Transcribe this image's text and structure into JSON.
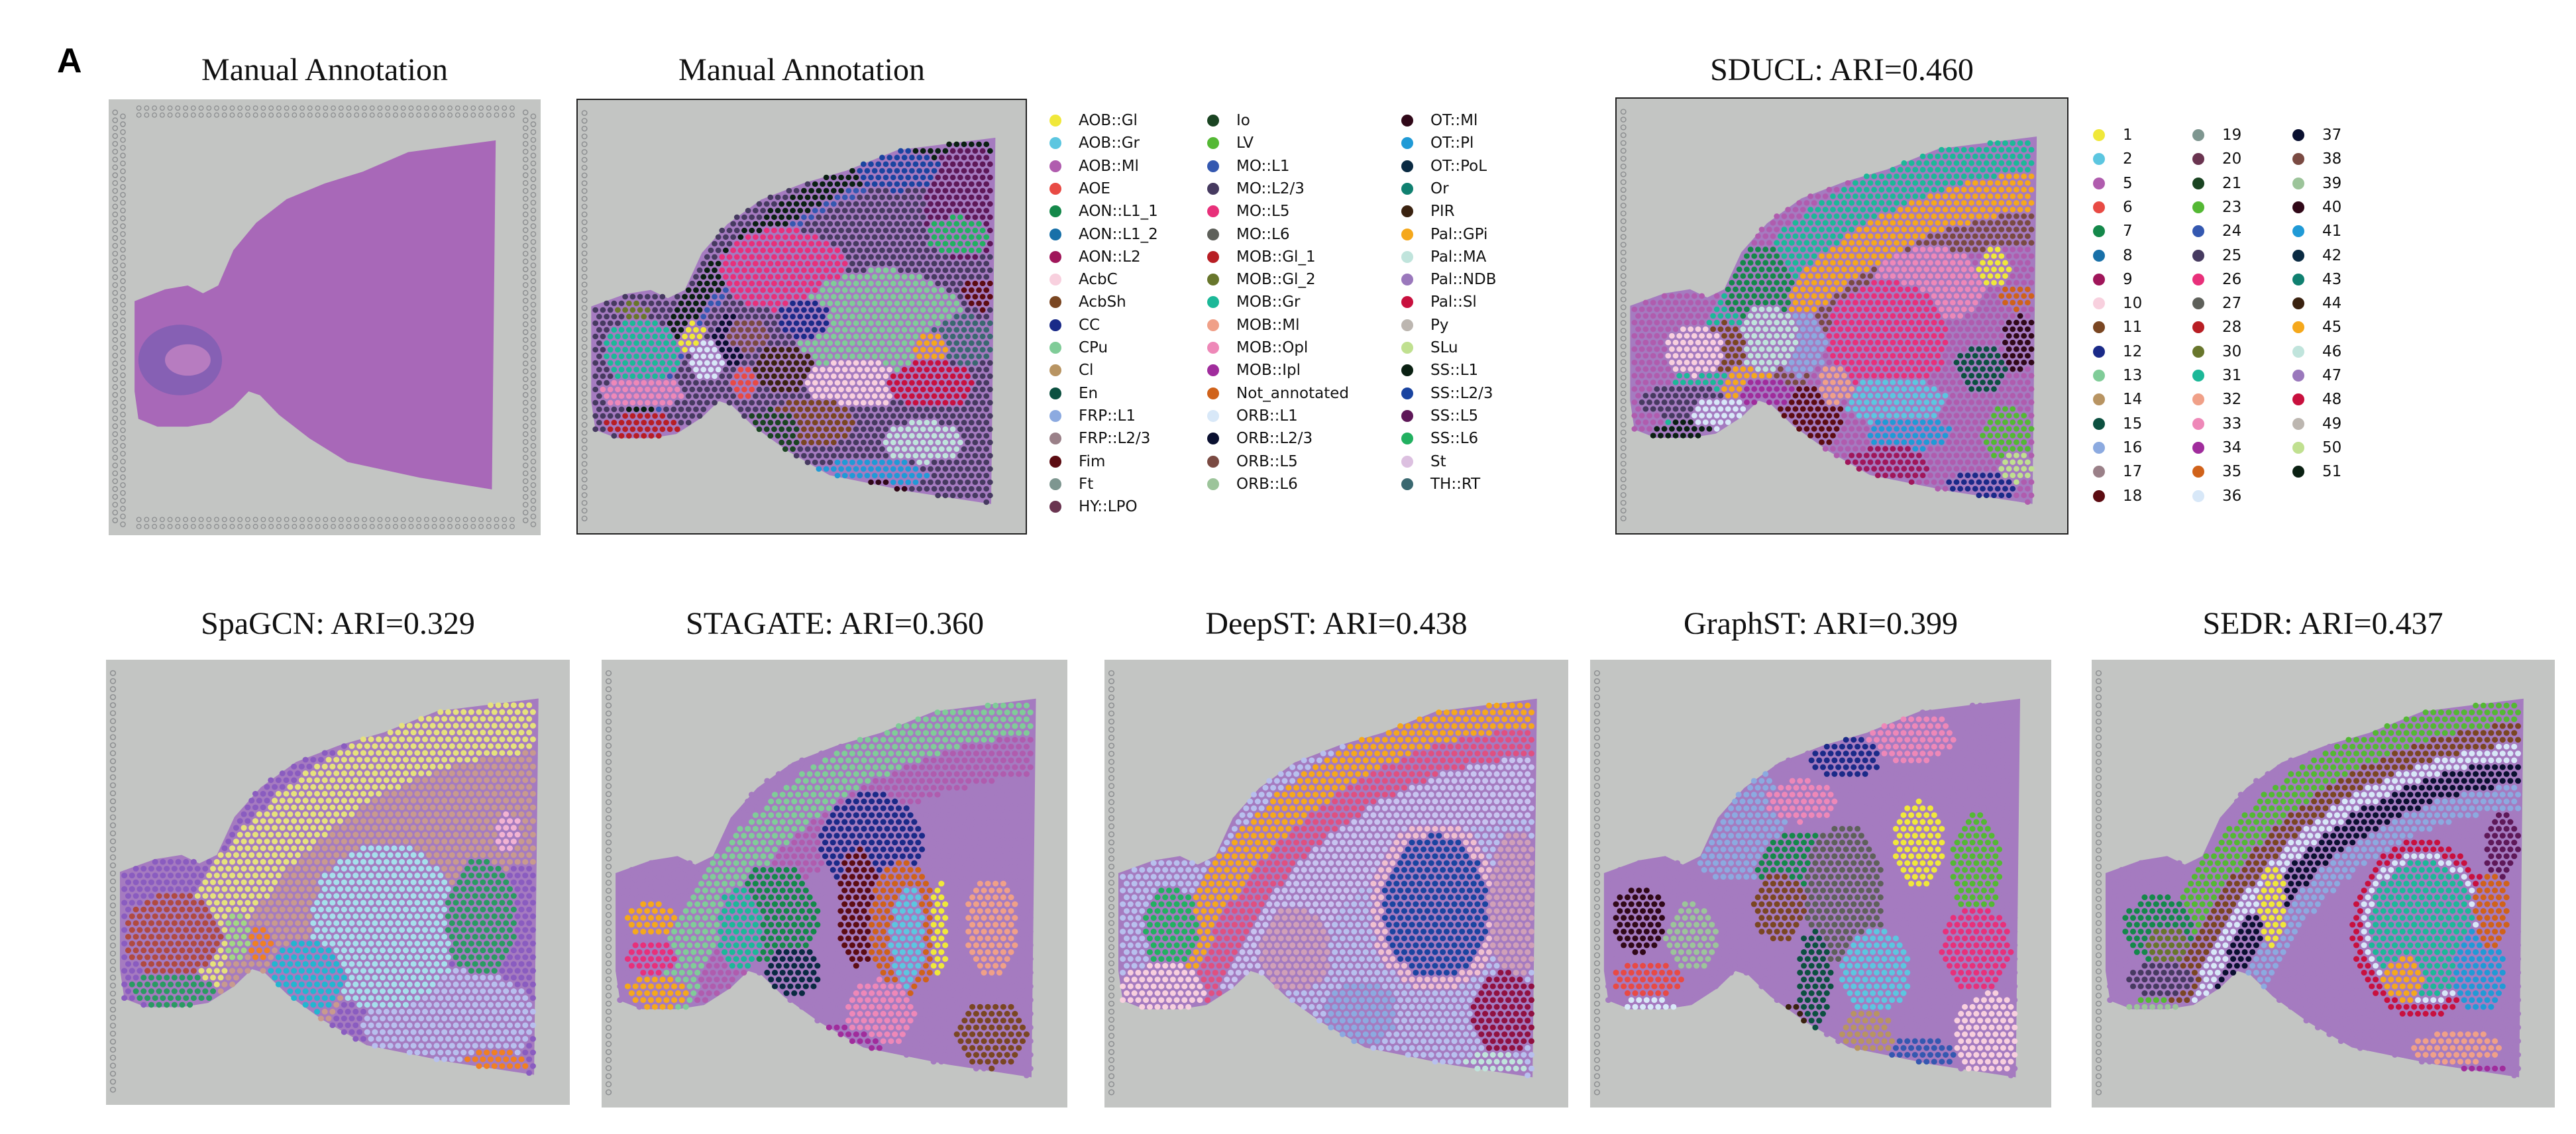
{
  "figure_label": "A",
  "panels": [
    {
      "id": "he",
      "title": "Manual Annotation"
    },
    {
      "id": "manual",
      "title": "Manual Annotation"
    },
    {
      "id": "sducl",
      "title": "SDUCL: ARI=0.460"
    },
    {
      "id": "spagcn",
      "title": "SpaGCN: ARI=0.329"
    },
    {
      "id": "stagate",
      "title": "STAGATE: ARI=0.360"
    },
    {
      "id": "deepst",
      "title": "DeepST: ARI=0.438"
    },
    {
      "id": "graphst",
      "title": "GraphST: ARI=0.399"
    },
    {
      "id": "sedr",
      "title": "SEDR: ARI=0.437"
    }
  ],
  "palette": [
    "#f0e83a",
    "#5cc6e0",
    "#b05cae",
    "#e84a44",
    "#14884a",
    "#1870a8",
    "#a0165a",
    "#f8d0de",
    "#7a4622",
    "#1a2a88",
    "#80cc98",
    "#b89462",
    "#0c5040",
    "#8caae0",
    "#9a8088",
    "#5c0c12",
    "#7e9690",
    "#6a3450",
    "#1a4422",
    "#54b834",
    "#3458b0",
    "#463a60",
    "#e8307a",
    "#5e605a",
    "#b81e24",
    "#68762c",
    "#1cb898",
    "#f0a088",
    "#ee88b8",
    "#a02c9c",
    "#d0621a",
    "#d8e8f8",
    "#0a1030",
    "#7a4a42",
    "#9cc49a",
    "#300818",
    "#209ad6",
    "#0a2a42",
    "#108070",
    "#3a2210",
    "#f5a81c",
    "#c0e4dc",
    "#9a78bc",
    "#c8103e",
    "#bcb6b0",
    "#c0e090",
    "#0a2012",
    "#1a44a0",
    "#5e1858",
    "#22b060",
    "#dcc0e0",
    "#3a6870"
  ],
  "annotation_legend": {
    "labels": [
      "AOB::Gl",
      "AOB::Gr",
      "AOB::Ml",
      "AOE",
      "AON::L1_1",
      "AON::L1_2",
      "AON::L2",
      "AcbC",
      "AcbSh",
      "CC",
      "CPu",
      "Cl",
      "En",
      "FRP::L1",
      "FRP::L2/3",
      "Fim",
      "Ft",
      "HY::LPO",
      "Io",
      "LV",
      "MO::L1",
      "MO::L2/3",
      "MO::L5",
      "MO::L6",
      "MOB::Gl_1",
      "MOB::Gl_2",
      "MOB::Gr",
      "MOB::Ml",
      "MOB::Opl",
      "MOB::Ipl",
      "Not_annotated",
      "ORB::L1",
      "ORB::L2/3",
      "ORB::L5",
      "ORB::L6",
      "OT::Ml",
      "OT::Pl",
      "OT::PoL",
      "Or",
      "PIR",
      "Pal::GPi",
      "Pal::MA",
      "Pal::NDB",
      "Pal::Sl",
      "Py",
      "SLu",
      "SS::L1",
      "SS::L2/3",
      "SS::L5",
      "SS::L6",
      "St",
      "TH::RT"
    ],
    "column_sizes": [
      18,
      17,
      17
    ]
  },
  "cluster_legend": {
    "labels": [
      "1",
      "2",
      "5",
      "6",
      "7",
      "8",
      "9",
      "10",
      "11",
      "12",
      "13",
      "14",
      "15",
      "16",
      "17",
      "18",
      "19",
      "20",
      "21",
      "23",
      "24",
      "25",
      "26",
      "27",
      "28",
      "30",
      "31",
      "32",
      "33",
      "34",
      "35",
      "36",
      "37",
      "38",
      "39",
      "40",
      "41",
      "42",
      "43",
      "44",
      "45",
      "46",
      "47",
      "48",
      "49",
      "50",
      "51"
    ],
    "column_sizes": [
      16,
      16,
      15
    ]
  },
  "extra_colors": {
    "pale_yellow": "#e6e27c",
    "tan": "#c89a8e",
    "light_cyan": "#a6e0ec",
    "sea_green": "#2a9a62",
    "red_brown": "#b04a40",
    "cyan": "#22b6d0",
    "lavender": "#b8c0ee",
    "purple": "#8a5cc0",
    "light_pink": "#f2b4d2",
    "orange": "#f08022",
    "steel_blue": "#2a78c0",
    "light_green": "#a2d884",
    "periwinkle_light": "#c8c4f0",
    "rose": "#e05080",
    "dusty_rose": "#d0a0b8",
    "wine": "#901040",
    "pink_pale": "#f0c0d0",
    "tissue": "#a57bc0",
    "he_stain": "#a868b8",
    "he_dark": "#6a5ab0",
    "slide": "#c3c5c3"
  }
}
